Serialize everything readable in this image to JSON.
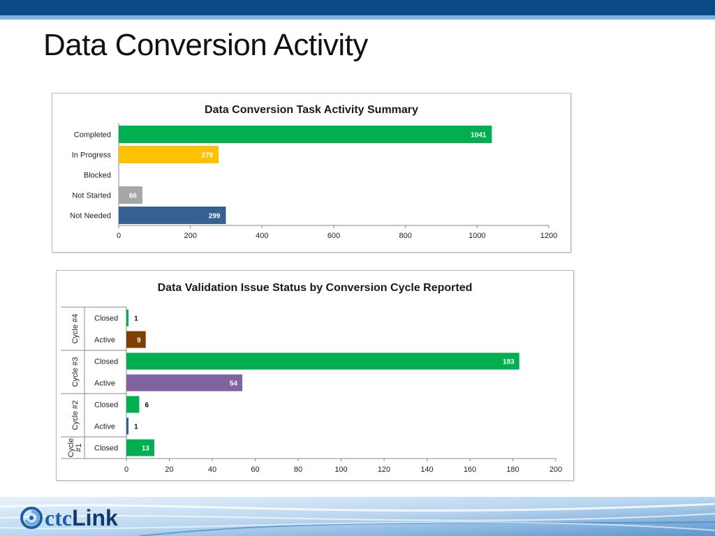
{
  "slide": {
    "title": "Data Conversion Activity"
  },
  "colors": {
    "green": "#00b050",
    "orange": "#ffc000",
    "gray": "#a6a6a6",
    "blue": "#376092",
    "brown": "#7f3f00",
    "purple": "#8064a2",
    "header": "#0b4a86"
  },
  "chart_data": [
    {
      "type": "bar",
      "orientation": "horizontal",
      "title": "Data Conversion Task Activity Summary",
      "categories": [
        "Completed",
        "In Progress",
        "Blocked",
        "Not Started",
        "Not Needed"
      ],
      "values": [
        1041,
        279,
        null,
        66,
        299
      ],
      "data_labels": [
        "1041",
        "279",
        "",
        "66",
        "299"
      ],
      "bar_colors": [
        "#00b050",
        "#ffc000",
        "#ffffff",
        "#a6a6a6",
        "#376092"
      ],
      "xlim": [
        0,
        1200
      ],
      "xticks": [
        "0",
        "200",
        "400",
        "600",
        "800",
        "1000",
        "1200"
      ],
      "grid": false,
      "legend": "none"
    },
    {
      "type": "bar",
      "orientation": "horizontal",
      "title": "Data Validation  Issue Status by Conversion Cycle Reported",
      "groups": [
        {
          "name": "Cycle #4",
          "rows": [
            {
              "label": "Closed",
              "value": 1,
              "color": "#00b050"
            },
            {
              "label": "Active",
              "value": 9,
              "color": "#7f3f00"
            }
          ]
        },
        {
          "name": "Cycle #3",
          "rows": [
            {
              "label": "Closed",
              "value": 183,
              "color": "#00b050"
            },
            {
              "label": "Active",
              "value": 54,
              "color": "#8064a2"
            }
          ]
        },
        {
          "name": "Cycle #2",
          "rows": [
            {
              "label": "Closed",
              "value": 6,
              "color": "#00b050"
            },
            {
              "label": "Active",
              "value": 1,
              "color": "#376092"
            }
          ]
        },
        {
          "name": "Cycle #1",
          "rows": [
            {
              "label": "Closed",
              "value": 13,
              "color": "#00b050"
            }
          ]
        }
      ],
      "xlim": [
        0,
        200
      ],
      "xticks": [
        "0",
        "20",
        "40",
        "60",
        "80",
        "100",
        "120",
        "140",
        "160",
        "180",
        "200"
      ],
      "grid": false,
      "legend": "none"
    }
  ],
  "footer": {
    "logo_ctc": "ctc",
    "logo_link": "Link"
  }
}
